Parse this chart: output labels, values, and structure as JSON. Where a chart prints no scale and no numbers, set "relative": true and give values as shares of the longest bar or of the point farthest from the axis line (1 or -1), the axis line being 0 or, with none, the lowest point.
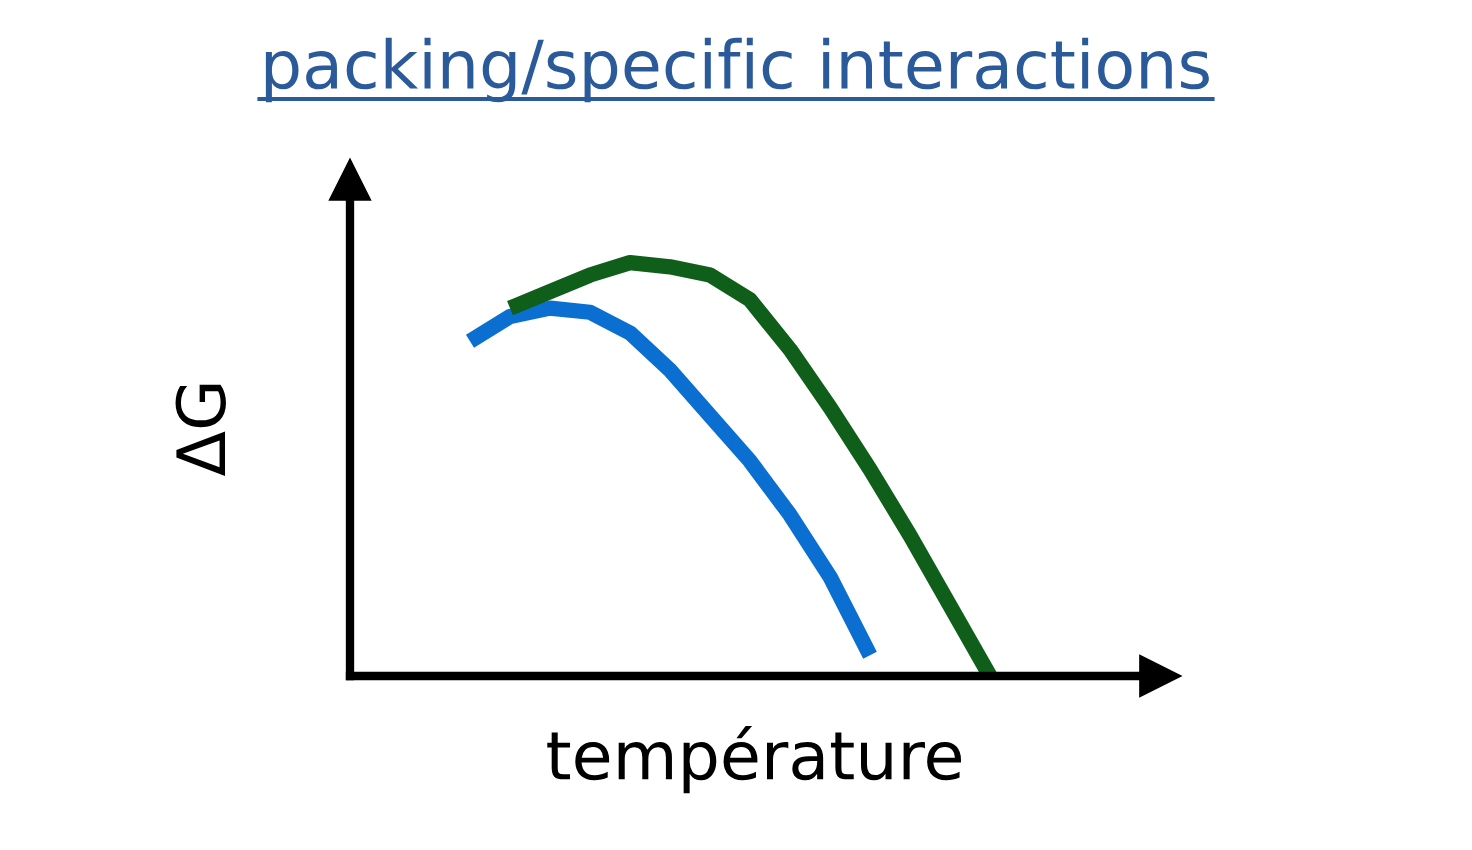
{
  "chart_data": {
    "type": "line",
    "title": "packing/specific interactions",
    "xlabel": "température",
    "ylabel": "ΔG",
    "relative": true,
    "tick_labels": false,
    "categories": [
      null,
      null,
      null,
      null,
      null,
      null,
      null,
      null,
      null,
      null,
      null,
      null,
      null,
      null
    ],
    "series": [
      {
        "color": "#0a6fd0",
        "values": [
          0.81,
          0.87,
          0.89,
          0.88,
          0.83,
          0.74,
          0.63,
          0.52,
          0.39,
          0.24,
          0.05,
          null,
          null,
          null
        ]
      },
      {
        "color": "#0f5e1a",
        "values": [
          null,
          0.89,
          0.93,
          0.97,
          1.0,
          0.99,
          0.97,
          0.91,
          0.79,
          0.65,
          0.5,
          0.34,
          0.17,
          0.0
        ]
      }
    ]
  }
}
